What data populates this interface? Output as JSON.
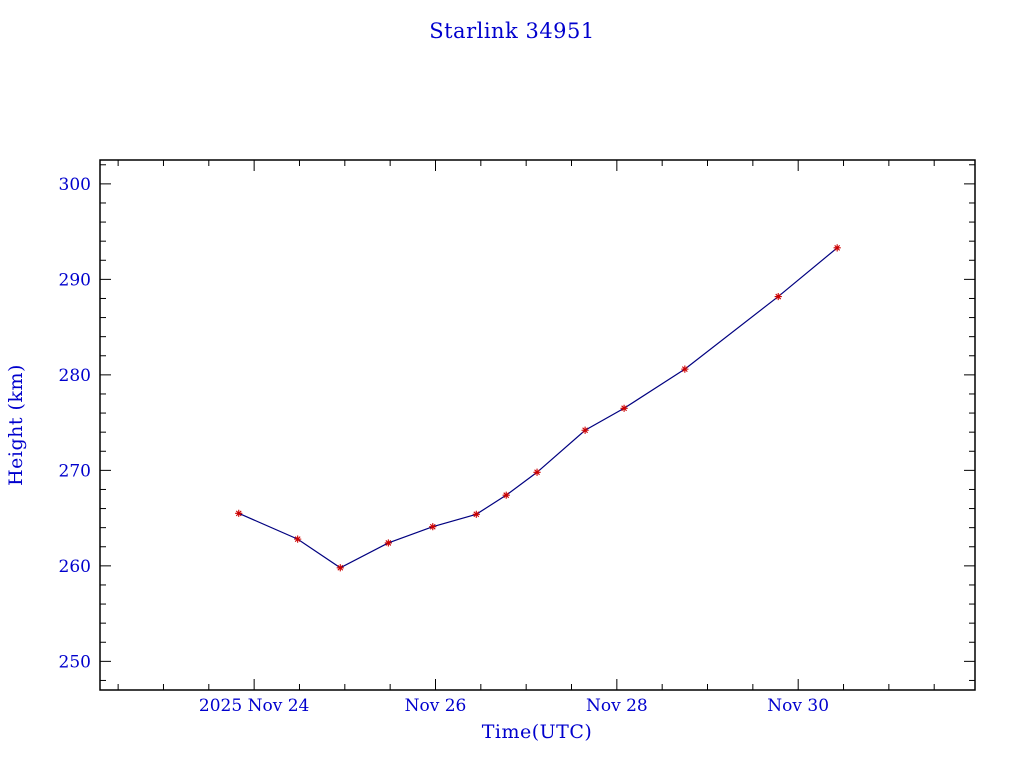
{
  "chart_data": {
    "type": "line",
    "title": "Starlink 34951",
    "xlabel": "Time(UTC)",
    "ylabel": "Height (km)",
    "x_axis_unit": "day of November 2025 (UTC)",
    "xlim": [
      22.3,
      31.95
    ],
    "ylim": [
      247.0,
      302.5
    ],
    "x": [
      23.83,
      24.48,
      24.95,
      25.48,
      25.97,
      26.45,
      26.78,
      27.12,
      27.65,
      28.08,
      28.75,
      29.78,
      30.43
    ],
    "y": [
      265.5,
      262.8,
      259.8,
      262.4,
      264.1,
      265.4,
      267.4,
      269.8,
      274.2,
      276.5,
      280.6,
      288.2,
      293.3
    ],
    "x_ticks": [
      {
        "value": 24,
        "label": "2025 Nov 24"
      },
      {
        "value": 26,
        "label": "Nov 26"
      },
      {
        "value": 28,
        "label": "Nov 28"
      },
      {
        "value": 30,
        "label": "Nov 30"
      }
    ],
    "y_ticks": [
      {
        "value": 250,
        "label": "250"
      },
      {
        "value": 260,
        "label": "260"
      },
      {
        "value": 270,
        "label": "270"
      },
      {
        "value": 280,
        "label": "280"
      },
      {
        "value": 290,
        "label": "290"
      },
      {
        "value": 300,
        "label": "300"
      }
    ],
    "x_minor_tick_step": 0.5,
    "y_minor_tick_step": 2,
    "grid": false,
    "legend": null,
    "marker": "asterisk",
    "colors": {
      "line": "#000080",
      "marker": "#cc0000",
      "labels": "#0000cd",
      "frame": "#000000",
      "background": "#ffffff"
    }
  }
}
